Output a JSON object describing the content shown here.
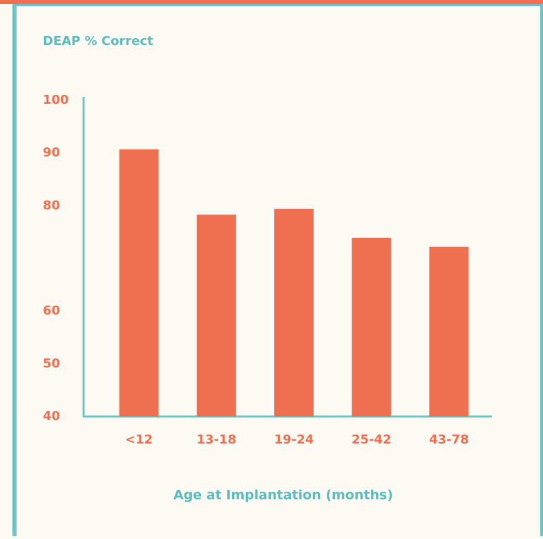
{
  "chart_data": {
    "type": "bar",
    "title": "DEAP % Correct",
    "x_label": "Age at Implantation (months)",
    "categories": [
      "<12",
      "13-18",
      "19-24",
      "25-42",
      "43-78"
    ],
    "values": [
      90.7,
      78.3,
      79.4,
      73.9,
      72.2
    ],
    "color": "#ef6f51",
    "ylim": [
      40,
      100
    ],
    "yticks": [
      100,
      90,
      80,
      60,
      50,
      40
    ],
    "grid": false
  }
}
